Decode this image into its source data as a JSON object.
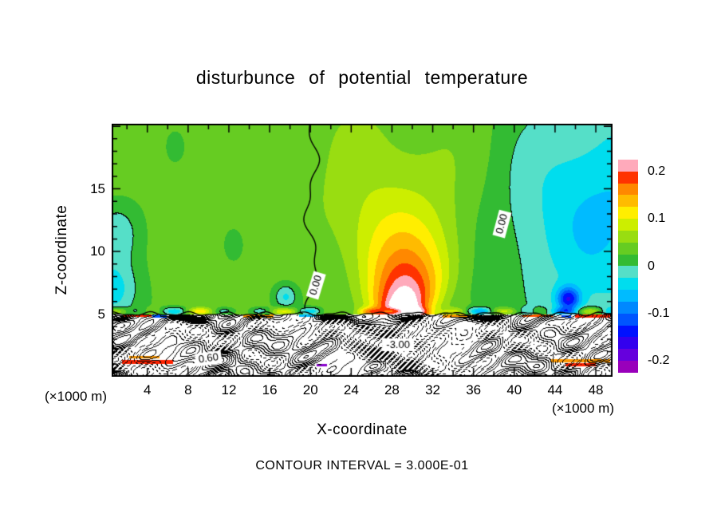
{
  "chart_data": {
    "type": "filled_contour",
    "title": "disturbunce of potential temperature",
    "xlabel": "X-coordinate",
    "ylabel": "Z-coordinate",
    "x_unit_left": "(×1000 m)",
    "x_unit_right": "(×1000 m)",
    "caption": "CONTOUR INTERVAL = 3.000E-01",
    "contour_interval": 0.3,
    "x_range": [
      0.5,
      49.64
    ],
    "y_range": [
      0,
      20.2
    ],
    "x_ticks": [
      4,
      8,
      12,
      16,
      20,
      24,
      28,
      32,
      36,
      40,
      44,
      48
    ],
    "y_ticks": [
      5,
      10,
      15
    ],
    "colorbar_ticks": [
      "0.2",
      "0.1",
      "0",
      "-0.1",
      "-0.2"
    ],
    "fill": {
      "min": -0.225,
      "max": 0.225,
      "step": 0.025,
      "palette": [
        "#9900bb",
        "#6600dd",
        "#3300ee",
        "#0011ff",
        "#0055ff",
        "#0088ff",
        "#00bbff",
        "#00ddee",
        "#55dfc8",
        "#33bb33",
        "#66cc22",
        "#99dd11",
        "#ccee00",
        "#ffee00",
        "#ffbb00",
        "#ff8800",
        "#ff3300",
        "#ffaabb"
      ],
      "over": "#ffffff",
      "under": "#770099"
    },
    "contour_labels": [
      {
        "text": "0.00",
        "x": 20.55,
        "z": 7.3,
        "rot": -73
      },
      {
        "text": "0.00",
        "x": 38.8,
        "z": 12.2,
        "rot": -75
      },
      {
        "text": "-3.00",
        "x": 28.6,
        "z": 2.55,
        "rot": 0
      },
      {
        "text": "0.60",
        "x": 10.0,
        "z": 1.45,
        "rot": -8
      }
    ],
    "field_model": {
      "base": 0.032,
      "mottle_amp": 0.008,
      "plume": {
        "x": 29,
        "z_base": 5.6,
        "amp": 0.26,
        "decay": 5.5,
        "width": 2.8,
        "spread": 0.5
      },
      "neg_regions": [
        {
          "x": 49,
          "z": 13,
          "sx": 10.5,
          "sz": 10,
          "a": -0.085
        },
        {
          "x": 45.3,
          "z": 6.2,
          "sx": 1.15,
          "sz": 0.95,
          "a": -0.14
        },
        {
          "x": 0.5,
          "z": 6.8,
          "sx": 2.6,
          "sz": 2.6,
          "a": -0.07
        },
        {
          "x": 1.0,
          "z": 11.5,
          "sx": 2.2,
          "sz": 2.2,
          "a": -0.045
        },
        {
          "x": 17.6,
          "z": 6.4,
          "sx": 1.1,
          "sz": 1.0,
          "a": -0.06
        }
      ],
      "bl_depression": {
        "x": 28.6,
        "z": 2.9,
        "sx": 4.2,
        "sz": 1.55,
        "a": -3.4
      },
      "bl_positive": {
        "x": 9.5,
        "z": 1.5,
        "sx": 4.5,
        "sz": 0.95,
        "a": 0.9
      }
    },
    "streaks": [
      {
        "x": 1.6,
        "w": 2.8,
        "z": 4.78,
        "h": 0.22,
        "color": "#ff2200"
      },
      {
        "x": 4.5,
        "w": 1.4,
        "z": 4.74,
        "h": 0.2,
        "color": "#0055ff"
      },
      {
        "x": 13.4,
        "w": 3.0,
        "z": 4.72,
        "h": 0.22,
        "color": "#ff9900"
      },
      {
        "x": 18.9,
        "w": 1.6,
        "z": 4.76,
        "h": 0.2,
        "color": "#00bbff"
      },
      {
        "x": 33.0,
        "w": 3.6,
        "z": 4.72,
        "h": 0.24,
        "color": "#ff9900"
      },
      {
        "x": 40.8,
        "w": 3.0,
        "z": 4.76,
        "h": 0.22,
        "color": "#ff5500"
      },
      {
        "x": 44.6,
        "w": 1.0,
        "z": 4.72,
        "h": 0.2,
        "color": "#0044ff"
      },
      {
        "x": 46.0,
        "w": 3.4,
        "z": 4.74,
        "h": 0.24,
        "color": "#ff2200"
      },
      {
        "x": 1.5,
        "w": 5.0,
        "z": 1.05,
        "h": 0.3,
        "color": "#ff2200"
      },
      {
        "x": 2.2,
        "w": 3.0,
        "z": 1.45,
        "h": 0.22,
        "color": "#ff9900"
      },
      {
        "x": 20.6,
        "w": 1.0,
        "z": 0.8,
        "h": 0.25,
        "color": "#8800cc"
      },
      {
        "x": 43.6,
        "w": 5.8,
        "z": 1.15,
        "h": 0.28,
        "color": "#ff9900"
      },
      {
        "x": 45.0,
        "w": 3.0,
        "z": 0.85,
        "h": 0.22,
        "color": "#ff2200"
      }
    ],
    "features": [
      {
        "feature": "warm plume",
        "x_center": 29,
        "z_base": 5,
        "peak_value": "above 0.2 (white core)",
        "note": "bullseye of pink/red/orange/yellow rings narrowing upward"
      },
      {
        "feature": "cool region",
        "x_span": [
          37,
          50
        ],
        "z_span": [
          5,
          18
        ],
        "value": "about -0.05 (cyan)",
        "note": "bounded by labeled 0.00 contour"
      },
      {
        "feature": "cold spot",
        "x": 45.3,
        "z": 6.2,
        "value": "about -0.18 (deep blue)"
      },
      {
        "feature": "background",
        "value": "about +0.03 (green) above z=5"
      },
      {
        "feature": "turbulent boundary layer",
        "z_span": [
          0,
          5
        ],
        "value": "line contours at 0.3 interval, minimum below -3.0 near x=28.6"
      }
    ]
  }
}
